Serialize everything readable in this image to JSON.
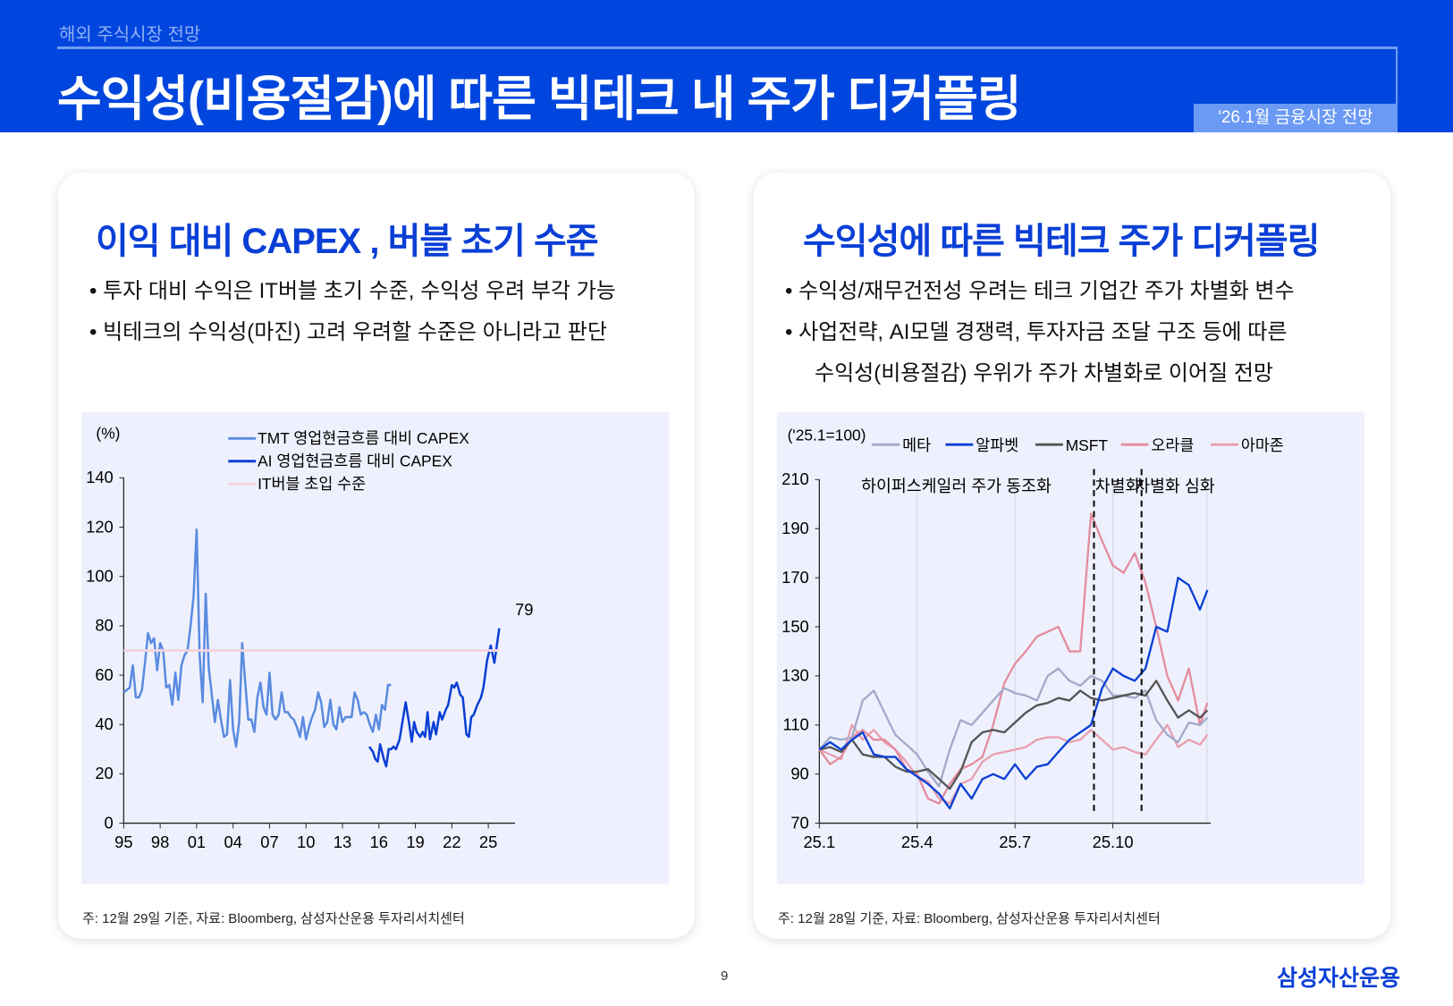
{
  "header": {
    "section": "해외 주식시장 전망",
    "title": "수익성(비용절감)에 따른 빅테크 내 주가 디커플링",
    "badge": "'26.1월 금융시장 전망"
  },
  "left": {
    "title": "이익 대비 CAPEX , 버블 초기 수준",
    "bullets": [
      "투자 대비 수익은 IT버블 초기 수준, 수익성 우려 부각 가능",
      "빅테크의 수익성(마진) 고려 우려할 수준은 아니라고 판단"
    ],
    "footnote": "주: 12월 29일 기준, 자료: Bloomberg, 삼성자산운용 투자리서치센터"
  },
  "right": {
    "title": "수익성에 따른 빅테크 주가 디커플링",
    "bullets": [
      "수익성/재무건전성 우려는 테크 기업간 주가 차별화 변수",
      "사업전략, AI모델 경쟁력, 투자자금 조달 구조 등에 따른"
    ],
    "bullet_cont": "수익성(비용절감) 우위가 주가 차별화로 이어질 전망",
    "footnote": "주: 12월 28일 기준, 자료: Bloomberg, 삼성자산운용 투자리서치센터"
  },
  "page_number": "9",
  "logo": "삼성자산운용",
  "chart_data": [
    {
      "type": "line",
      "unit_label": "(%)",
      "ylim": [
        0,
        140
      ],
      "y_ticks": [
        0,
        20,
        40,
        60,
        80,
        100,
        120,
        140
      ],
      "x_ticks": [
        {
          "v": 1995,
          "label": "95"
        },
        {
          "v": 1998,
          "label": "98"
        },
        {
          "v": 2001,
          "label": "01"
        },
        {
          "v": 2004,
          "label": "04"
        },
        {
          "v": 2007,
          "label": "07"
        },
        {
          "v": 2010,
          "label": "10"
        },
        {
          "v": 2013,
          "label": "13"
        },
        {
          "v": 2016,
          "label": "16"
        },
        {
          "v": 2019,
          "label": "19"
        },
        {
          "v": 2022,
          "label": "22"
        },
        {
          "v": 2025,
          "label": "25"
        }
      ],
      "xlim": [
        1995,
        2027.2
      ],
      "annotation": "79",
      "series": [
        {
          "name": "TMT 영업현금흐름 대비 CAPEX",
          "color": "#5a8be0",
          "x_start": 1995,
          "x_step": 0.25,
          "values": [
            53,
            54,
            55,
            64,
            51,
            51,
            54,
            65,
            77,
            73,
            75,
            62,
            73,
            70,
            55,
            56,
            48,
            61,
            50,
            64,
            68,
            70,
            80,
            92,
            119,
            68,
            49,
            93,
            63,
            52,
            41,
            50,
            42,
            35,
            36,
            58,
            38,
            31,
            41,
            73,
            57,
            42,
            42,
            37,
            51,
            57,
            47,
            44,
            61,
            44,
            42,
            44,
            53,
            45,
            45,
            43,
            42,
            39,
            35,
            43,
            34,
            39,
            43,
            46,
            53,
            49,
            39,
            41,
            50,
            40,
            38,
            47,
            41,
            43,
            43,
            43,
            53,
            50,
            44,
            45,
            44,
            40,
            37,
            44,
            38,
            48,
            46,
            56,
            56
          ]
        },
        {
          "name": "AI 영업현금흐름 대비 CAPEX",
          "color": "#0a3fd6",
          "x": [
            2015.2,
            2015.5,
            2015.7,
            2015.9,
            2016.1,
            2016.4,
            2016.6,
            2016.8,
            2017.0,
            2017.2,
            2017.4,
            2017.7,
            2018.2,
            2018.5,
            2018.7,
            2018.9,
            2019.1,
            2019.4,
            2019.6,
            2019.8,
            2020.0,
            2020.2,
            2020.5,
            2020.7,
            2021.0,
            2021.2,
            2021.5,
            2021.7,
            2022.0,
            2022.2,
            2022.4,
            2022.7,
            2022.9,
            2023.2,
            2023.4,
            2023.6,
            2023.8,
            2024.1,
            2024.4,
            2024.6,
            2024.9,
            2025.2,
            2025.5,
            2025.9
          ],
          "values": [
            31,
            29,
            26,
            25,
            32,
            26,
            23,
            30,
            30,
            31,
            30,
            34,
            49,
            40,
            33,
            41,
            37,
            35,
            37,
            35,
            45,
            34,
            41,
            36,
            45,
            42,
            46,
            48,
            56,
            55,
            57,
            52,
            51,
            36,
            35,
            43,
            44,
            48,
            51,
            55,
            66,
            72,
            65,
            79
          ]
        },
        {
          "name": "IT버블 초입 수준",
          "color": "#f3d3dc",
          "constant": 70
        }
      ]
    },
    {
      "type": "line",
      "unit_label": "('25.1=100)",
      "ylim": [
        70,
        210
      ],
      "y_ticks": [
        70,
        90,
        110,
        130,
        150,
        170,
        190,
        210
      ],
      "x_ticks": [
        {
          "v": 0,
          "label": "25.1"
        },
        {
          "v": 3,
          "label": "25.4"
        },
        {
          "v": 6,
          "label": "25.7"
        },
        {
          "v": 9,
          "label": "25.10"
        }
      ],
      "xlim": [
        0,
        12
      ],
      "phases": [
        {
          "label": "하이퍼스케일러 주가 동조화",
          "at": 4.2
        },
        {
          "label": "차별화",
          "at": 9.15
        },
        {
          "label": "차별화 심화",
          "at": 10.9
        }
      ],
      "dividers": [
        8.42,
        9.88
      ],
      "x": [
        0,
        0.33,
        0.67,
        1,
        1.33,
        1.67,
        2,
        2.33,
        2.67,
        3,
        3.33,
        3.67,
        4,
        4.33,
        4.67,
        5,
        5.33,
        5.67,
        6,
        6.33,
        6.67,
        7,
        7.33,
        7.67,
        8,
        8.33,
        8.67,
        9,
        9.33,
        9.67,
        10,
        10.33,
        10.67,
        11,
        11.33,
        11.67,
        11.9
      ],
      "series": [
        {
          "name": "메타",
          "color": "#a3a9c9",
          "values": [
            100,
            105,
            104,
            105,
            120,
            124,
            115,
            106,
            102,
            98,
            91,
            85,
            100,
            112,
            110,
            115,
            120,
            125,
            123,
            122,
            120,
            130,
            133,
            128,
            126,
            130,
            128,
            122,
            122,
            121,
            124,
            112,
            106,
            103,
            111,
            110,
            113
          ]
        },
        {
          "name": "알파벳",
          "color": "#0a3fd6",
          "values": [
            100,
            103,
            100,
            104,
            107,
            98,
            97,
            97,
            92,
            89,
            86,
            82,
            76,
            86,
            80,
            88,
            90,
            88,
            94,
            88,
            93,
            94,
            99,
            104,
            107,
            110,
            125,
            133,
            130,
            128,
            133,
            150,
            148,
            170,
            167,
            157,
            165
          ]
        },
        {
          "name": "MSFT",
          "color": "#555555",
          "values": [
            100,
            101,
            99,
            104,
            98,
            97,
            97,
            93,
            91,
            91,
            92,
            88,
            84,
            91,
            103,
            107,
            108,
            107,
            111,
            115,
            118,
            119,
            121,
            120,
            124,
            121,
            120,
            121,
            122,
            123,
            122,
            128,
            120,
            113,
            116,
            113,
            116
          ]
        },
        {
          "name": "오라클",
          "color": "#e48c9f",
          "values": [
            100,
            94,
            97,
            105,
            108,
            104,
            104,
            100,
            92,
            90,
            80,
            78,
            86,
            92,
            94,
            97,
            110,
            127,
            135,
            140,
            146,
            148,
            150,
            140,
            140,
            196,
            185,
            175,
            172,
            180,
            168,
            150,
            130,
            120,
            133,
            110,
            119
          ]
        },
        {
          "name": "아마존",
          "color": "#e8a0b0",
          "values": [
            100,
            98,
            96,
            110,
            104,
            108,
            103,
            100,
            95,
            89,
            87,
            80,
            78,
            86,
            88,
            95,
            98,
            99,
            100,
            101,
            104,
            105,
            105,
            103,
            104,
            108,
            104,
            100,
            101,
            99,
            98,
            104,
            110,
            101,
            104,
            102,
            106
          ]
        }
      ]
    }
  ]
}
